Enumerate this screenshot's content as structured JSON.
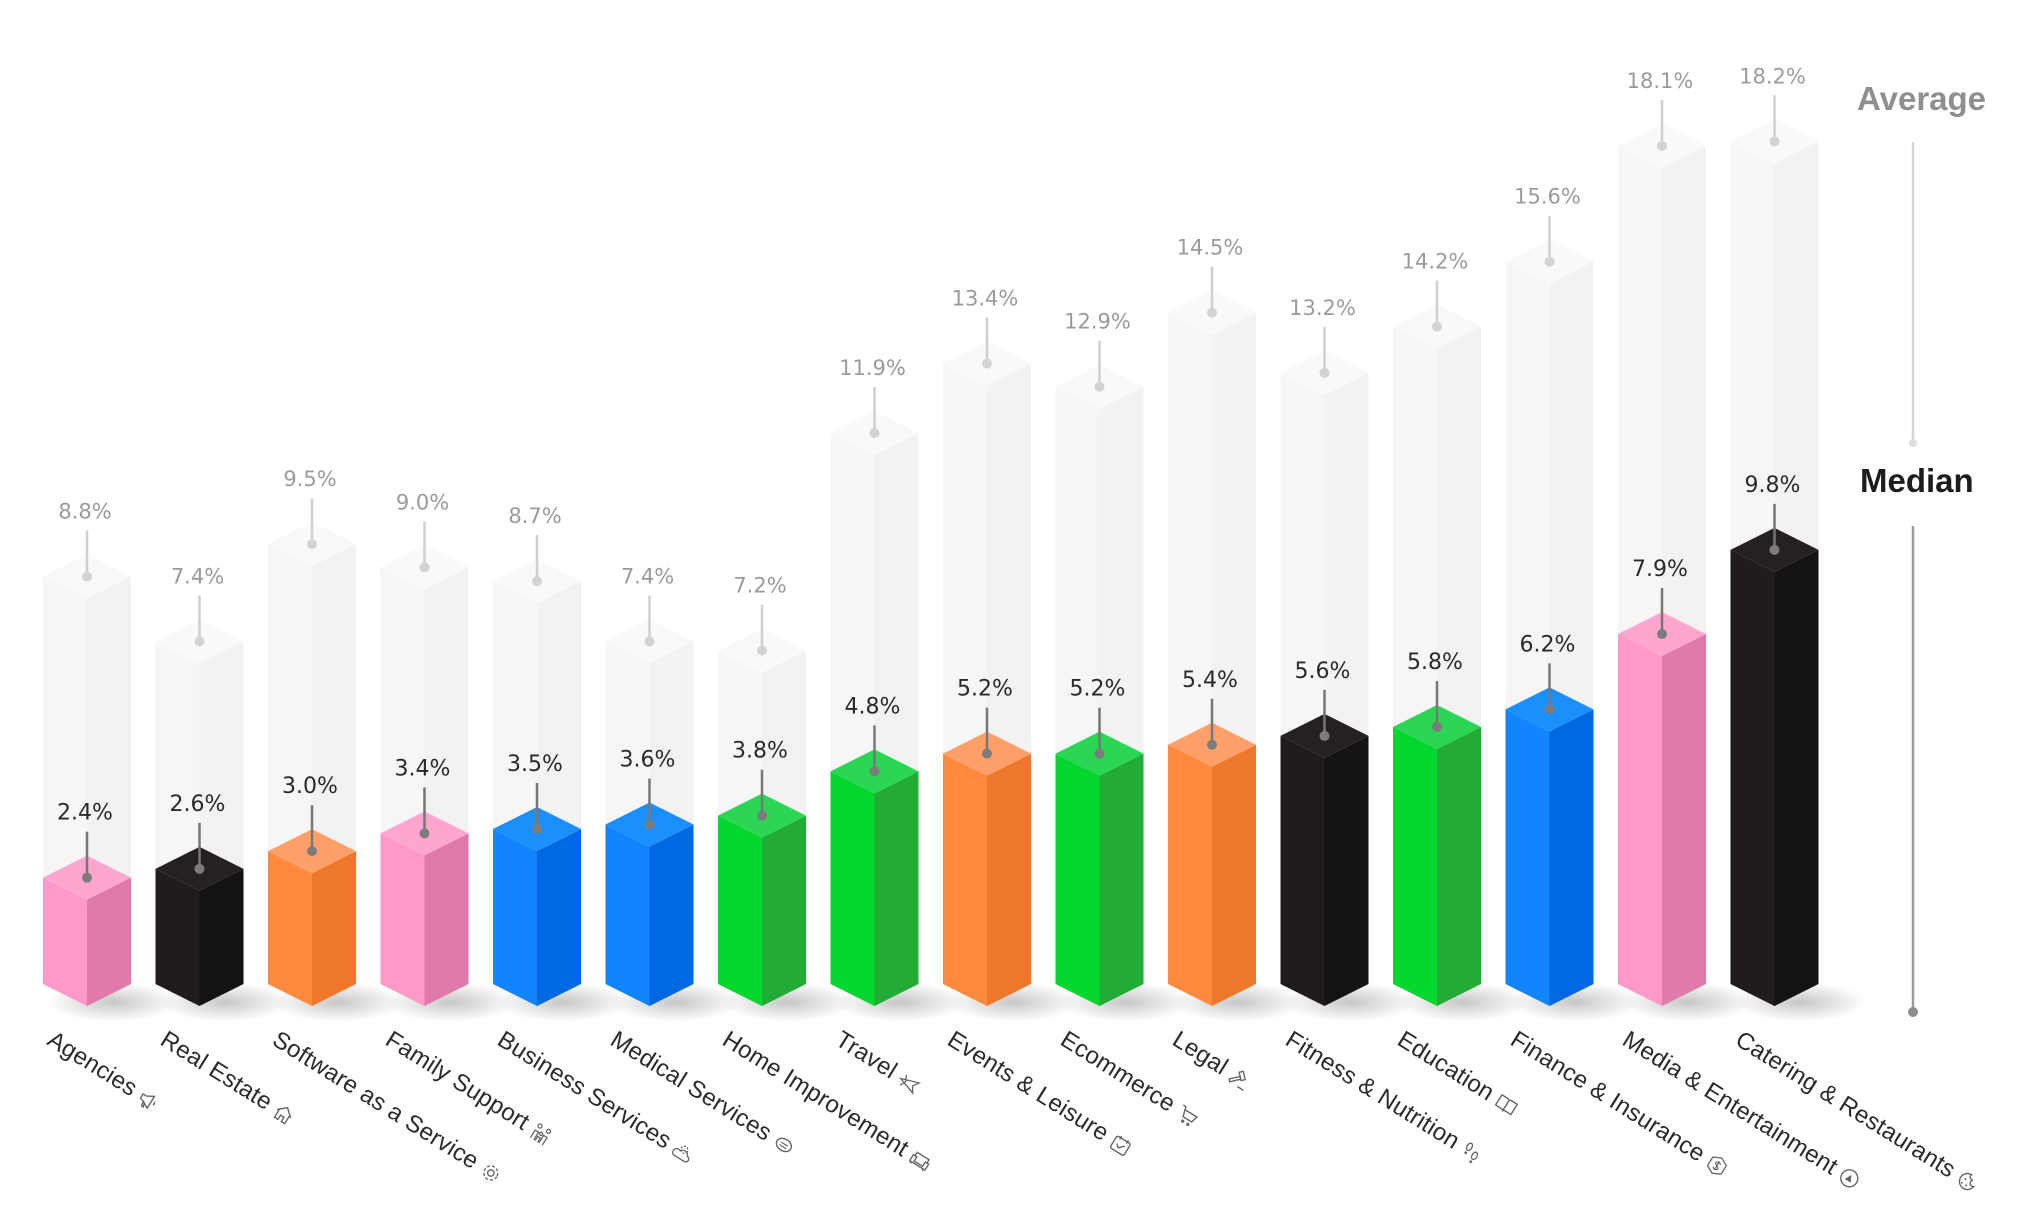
{
  "legend": {
    "average_label": "Average",
    "median_label": "Median"
  },
  "colors": {
    "pink": {
      "left": "#ff99c8",
      "right": "#e07aab",
      "top": "#ffa6cf"
    },
    "black": {
      "left": "#1f1c1b",
      "right": "#131313",
      "top": "#242120"
    },
    "orange": {
      "left": "#ff8a3d",
      "right": "#ef782a",
      "top": "#ffa06a"
    },
    "blue": {
      "left": "#1185fe",
      "right": "#0068e0",
      "top": "#1a90ff"
    },
    "green": {
      "left": "#05d72f",
      "right": "#22ab37",
      "top": "#2bd655"
    },
    "ghost": {
      "left": "#f6f6f6",
      "right": "#f2f2f2",
      "top": "#f9f9f9"
    }
  },
  "categories": [
    {
      "name": "Agencies",
      "icon": "megaphone-icon",
      "color": "pink",
      "average": "8.8%",
      "median": "2.4%"
    },
    {
      "name": "Real Estate",
      "icon": "house-icon",
      "color": "black",
      "average": "7.4%",
      "median": "2.6%"
    },
    {
      "name": "Software as a Service",
      "icon": "gear-icon",
      "color": "orange",
      "average": "9.5%",
      "median": "3.0%"
    },
    {
      "name": "Family Support",
      "icon": "family-icon",
      "color": "pink",
      "average": "9.0%",
      "median": "3.4%"
    },
    {
      "name": "Business Services",
      "icon": "cloud-gear-icon",
      "color": "blue",
      "average": "8.7%",
      "median": "3.5%"
    },
    {
      "name": "Medical Services",
      "icon": "mask-icon",
      "color": "blue",
      "average": "7.4%",
      "median": "3.6%"
    },
    {
      "name": "Home Improvement",
      "icon": "sofa-icon",
      "color": "green",
      "average": "7.2%",
      "median": "3.8%"
    },
    {
      "name": "Travel",
      "icon": "airplane-icon",
      "color": "green",
      "average": "11.9%",
      "median": "4.8%"
    },
    {
      "name": "Events & Leisure",
      "icon": "calendar-check-icon",
      "color": "orange",
      "average": "13.4%",
      "median": "5.2%"
    },
    {
      "name": "Ecommerce",
      "icon": "cart-icon",
      "color": "green",
      "average": "12.9%",
      "median": "5.2%"
    },
    {
      "name": "Legal",
      "icon": "gavel-icon",
      "color": "orange",
      "average": "14.5%",
      "median": "5.4%"
    },
    {
      "name": "Fitness & Nutrition",
      "icon": "footprints-icon",
      "color": "black",
      "average": "13.2%",
      "median": "5.6%"
    },
    {
      "name": "Education",
      "icon": "book-icon",
      "color": "green",
      "average": "14.2%",
      "median": "5.8%"
    },
    {
      "name": "Finance & Insurance",
      "icon": "dollar-badge-icon",
      "color": "blue",
      "average": "15.6%",
      "median": "6.2%"
    },
    {
      "name": "Media & Entertainment",
      "icon": "play-icon",
      "color": "pink",
      "average": "18.1%",
      "median": "7.9%"
    },
    {
      "name": "Catering & Restaurants",
      "icon": "cookie-icon",
      "color": "black",
      "average": "18.2%",
      "median": "9.8%"
    }
  ],
  "chart_data": {
    "type": "bar",
    "title": "",
    "xlabel": "",
    "ylabel": "",
    "categories": [
      "Agencies",
      "Real Estate",
      "Software as a Service",
      "Family Support",
      "Business Services",
      "Medical Services",
      "Home Improvement",
      "Travel",
      "Events & Leisure",
      "Ecommerce",
      "Legal",
      "Fitness & Nutrition",
      "Education",
      "Finance & Insurance",
      "Media & Entertainment",
      "Catering & Restaurants"
    ],
    "series": [
      {
        "name": "Average",
        "values": [
          8.8,
          7.4,
          9.5,
          9.0,
          8.7,
          7.4,
          7.2,
          11.9,
          13.4,
          12.9,
          14.5,
          13.2,
          14.2,
          15.6,
          18.1,
          18.2
        ]
      },
      {
        "name": "Median",
        "values": [
          2.4,
          2.6,
          3.0,
          3.4,
          3.5,
          3.6,
          3.8,
          4.8,
          5.2,
          5.2,
          5.4,
          5.6,
          5.8,
          6.2,
          7.9,
          9.8
        ]
      }
    ],
    "value_suffix": "%",
    "ylim": [
      0,
      20
    ],
    "grid": false,
    "legend": {
      "entries": [
        "Average",
        "Median"
      ],
      "position": "right"
    },
    "style": "3d isometric overlaid bars (average as light ghost bar behind median colored bar)"
  }
}
